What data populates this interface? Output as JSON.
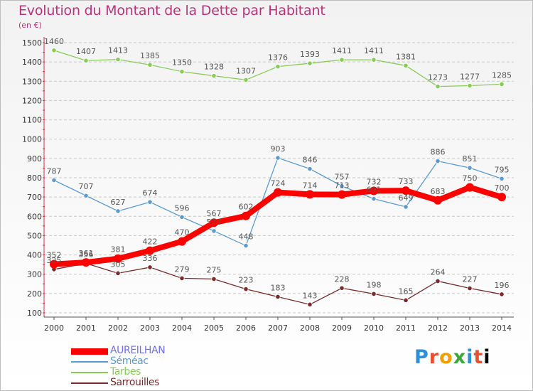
{
  "title": "Evolution du Montant de la Dette par Habitant",
  "subtitle": "(en €)",
  "logo": "Proxiti",
  "colors": {
    "title": "#c0307a",
    "grid": "#c8c8c8",
    "axis_text": "#333333",
    "label_text": "#555555"
  },
  "chart_data": {
    "type": "line",
    "title": "Evolution du Montant de la Dette par Habitant",
    "subtitle": "(en €)",
    "xlabel": "",
    "ylabel": "",
    "x": [
      "2000",
      "2001",
      "2002",
      "2003",
      "2004",
      "2005",
      "2006",
      "2007",
      "2008",
      "2009",
      "2010",
      "2011",
      "2012",
      "2013",
      "2014"
    ],
    "ylim": [
      100,
      1500
    ],
    "yticks": [
      100,
      200,
      300,
      400,
      500,
      600,
      700,
      800,
      900,
      1000,
      1100,
      1200,
      1300,
      1400,
      1500
    ],
    "grid": "horizontal dashed",
    "legend_position": "bottom-left",
    "series": [
      {
        "name": "AUREILHAN",
        "color": "#ff0000",
        "legend_text_color": "#6f6ff0",
        "thick": true,
        "values": [
          352,
          361,
          381,
          422,
          470,
          567,
          602,
          724,
          714,
          713,
          732,
          733,
          683,
          750,
          700
        ],
        "labels": [
          "352",
          "361",
          "381",
          "422",
          "470",
          "567",
          "602",
          "724",
          "714",
          "713",
          "732",
          "733",
          "683",
          "750",
          "700"
        ]
      },
      {
        "name": "Séméac",
        "color": "#5a9bd4",
        "legend_text_color": "#5a9bd4",
        "thick": false,
        "values": [
          787,
          707,
          627,
          674,
          596,
          524,
          448,
          903,
          846,
          757,
          691,
          649,
          886,
          851,
          795
        ],
        "labels": [
          "787",
          "707",
          "627",
          "674",
          "596",
          "524",
          "448",
          "903",
          "846",
          "757",
          "691",
          "649",
          "886",
          "851",
          "795"
        ]
      },
      {
        "name": "Tarbes",
        "color": "#88cc55",
        "legend_text_color": "#88cc55",
        "thick": false,
        "values": [
          1460,
          1407,
          1413,
          1385,
          1350,
          1328,
          1307,
          1376,
          1393,
          1411,
          1411,
          1381,
          1273,
          1277,
          1285
        ],
        "labels": [
          "1460",
          "1407",
          "1413",
          "1385",
          "1350",
          "1328",
          "1307",
          "1376",
          "1393",
          "1411",
          "1411",
          "1381",
          "1273",
          "1277",
          "1285"
        ]
      },
      {
        "name": "Sarrouilles",
        "color": "#7a2a2a",
        "legend_text_color": "#7a2a2a",
        "thick": false,
        "values": [
          325,
          356,
          305,
          336,
          279,
          275,
          223,
          183,
          143,
          228,
          198,
          165,
          264,
          227,
          196
        ],
        "labels": [
          "325",
          "356",
          "305",
          "336",
          "279",
          "275",
          "223",
          "183",
          "143",
          "228",
          "198",
          "165",
          "264",
          "227",
          "196"
        ]
      }
    ]
  }
}
